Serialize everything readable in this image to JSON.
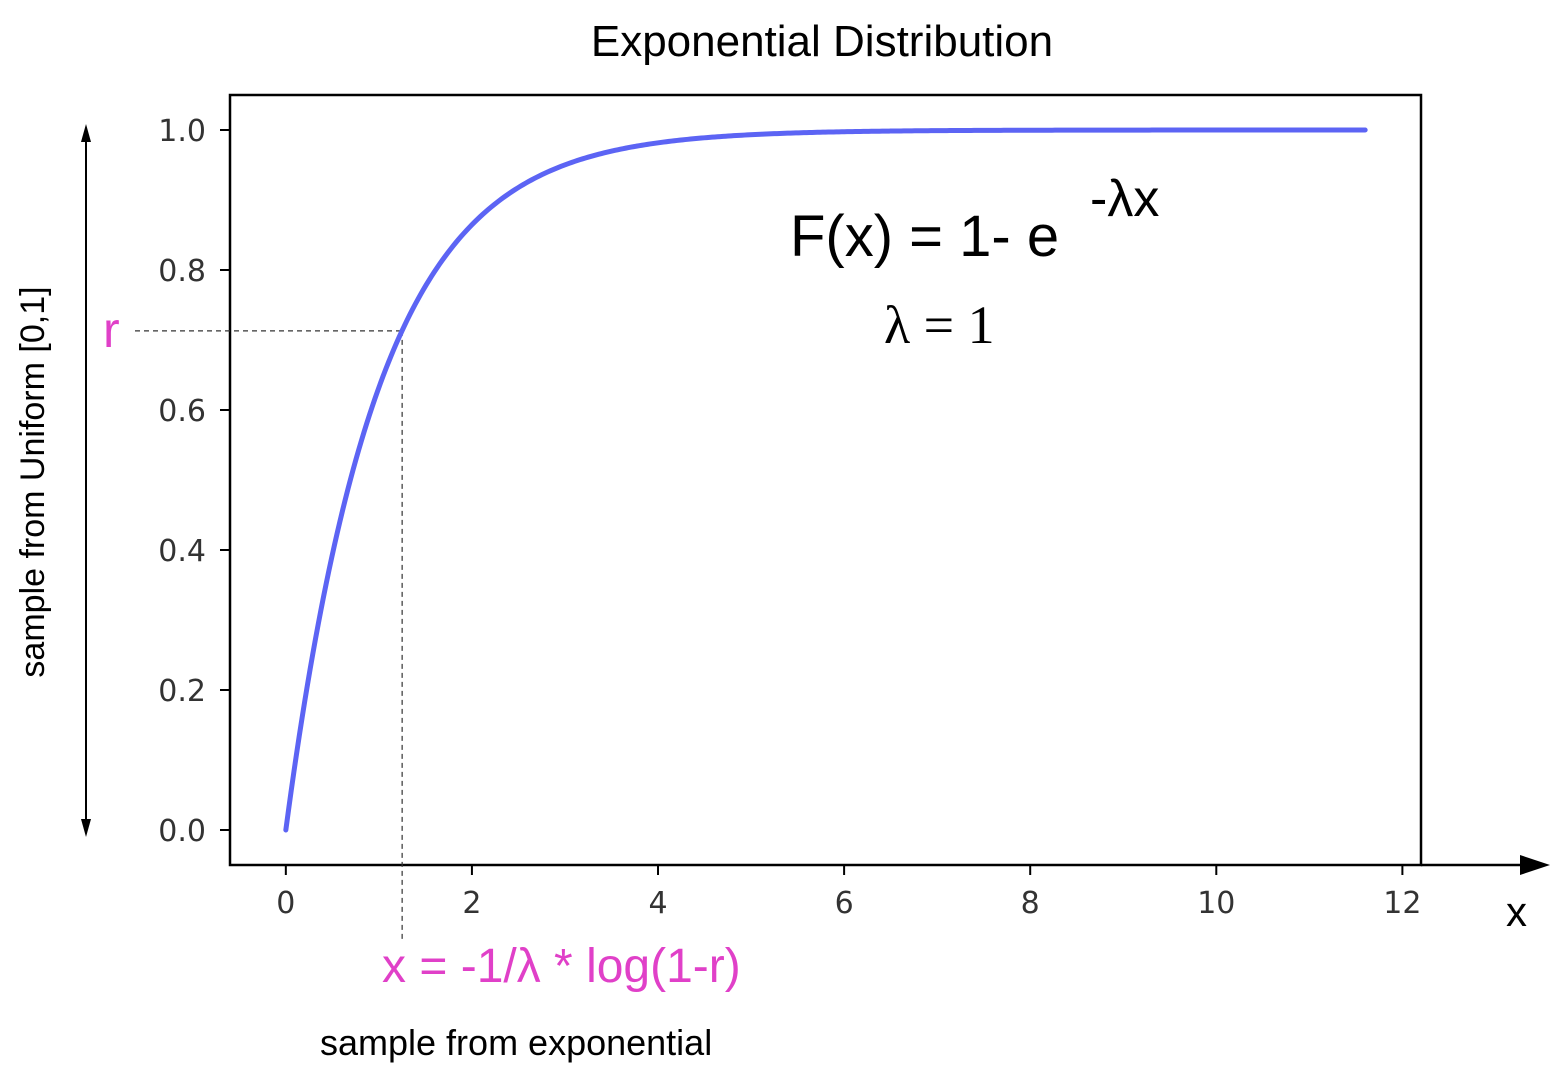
{
  "chart_data": {
    "type": "line",
    "title": "Exponential Distribution",
    "xlabel": "sample from exponential",
    "ylabel": "sample from Uniform [0,1]",
    "x_axis_arrow_label": "x",
    "xlim": [
      -0.6,
      12.2
    ],
    "ylim": [
      -0.05,
      1.05
    ],
    "xticks": [
      0,
      2,
      4,
      6,
      8,
      10,
      12
    ],
    "yticks": [
      0.0,
      0.2,
      0.4,
      0.6,
      0.8,
      1.0
    ],
    "xtick_labels": [
      "0",
      "2",
      "4",
      "6",
      "8",
      "10",
      "12"
    ],
    "ytick_labels": [
      "0.0",
      "0.2",
      "0.4",
      "0.6",
      "0.8",
      "1.0"
    ],
    "grid": false,
    "series": [
      {
        "color": "#5c64f4",
        "function": "1 - exp(-x)",
        "x_range": [
          0,
          11.6
        ],
        "points": [
          [
            0,
            0
          ],
          [
            0.25,
            0.221
          ],
          [
            0.5,
            0.393
          ],
          [
            0.75,
            0.528
          ],
          [
            1.0,
            0.632
          ],
          [
            1.25,
            0.713
          ],
          [
            1.5,
            0.777
          ],
          [
            2.0,
            0.865
          ],
          [
            2.5,
            0.918
          ],
          [
            3.0,
            0.95
          ],
          [
            3.5,
            0.97
          ],
          [
            4.0,
            0.982
          ],
          [
            5.0,
            0.993
          ],
          [
            6.0,
            0.998
          ],
          [
            7.0,
            0.999
          ],
          [
            8.0,
            1.0
          ],
          [
            9.0,
            1.0
          ],
          [
            10.0,
            1.0
          ],
          [
            11.6,
            1.0
          ]
        ]
      }
    ],
    "annotations": {
      "formula_main": "F(x) = 1- e",
      "formula_exponent": "-λx",
      "lambda_value": "λ = 1",
      "r_label": "r",
      "inverse_formula": "x = -1/λ * log(1-r)",
      "highlight_color": "#e040c8",
      "sample_point": {
        "x": 1.25,
        "y": 0.713
      }
    }
  }
}
